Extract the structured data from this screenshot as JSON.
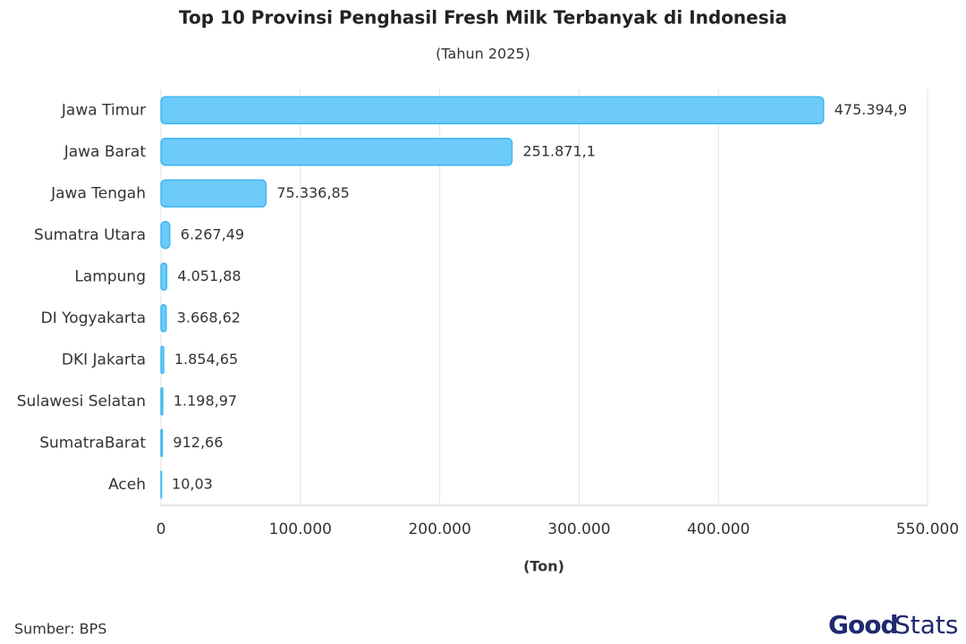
{
  "chart_data": {
    "type": "hbar",
    "title": "Top 10 Provinsi Penghasil Fresh Milk Terbanyak di Indonesia",
    "subtitle": "(Tahun 2025)",
    "x_label": "(Ton)",
    "source": "Sumber: BPS",
    "brand": {
      "first": "Good",
      "second": "Stats"
    },
    "categories": [
      "Jawa Timur",
      "Jawa Barat",
      "Jawa Tengah",
      "Sumatra Utara",
      "Lampung",
      "DI Yogyakarta",
      "DKI Jakarta",
      "Sulawesi Selatan",
      "SumatraBarat",
      "Aceh"
    ],
    "values": [
      475394.9,
      251871.1,
      75336.85,
      6267.49,
      4051.88,
      3668.62,
      1854.65,
      1198.97,
      912.66,
      10.03
    ],
    "value_labels": [
      "475.394,9",
      "251.871,1",
      "75.336,85",
      "6.267,49",
      "4.051,88",
      "3.668,62",
      "1.854,65",
      "1.198,97",
      "912,66",
      "10,03"
    ],
    "color": "#6ccbfb",
    "xlim": [
      0,
      550000
    ],
    "xticks": [
      0,
      {
        "value": 100000,
        "label": "100.000"
      },
      {
        "value": 200000,
        "label": "200.000"
      },
      {
        "value": 300000,
        "label": "300.000"
      },
      {
        "value": 400000,
        "label": "400.000"
      },
      {
        "value": 550000,
        "label": "550.000"
      }
    ],
    "grid": true
  }
}
